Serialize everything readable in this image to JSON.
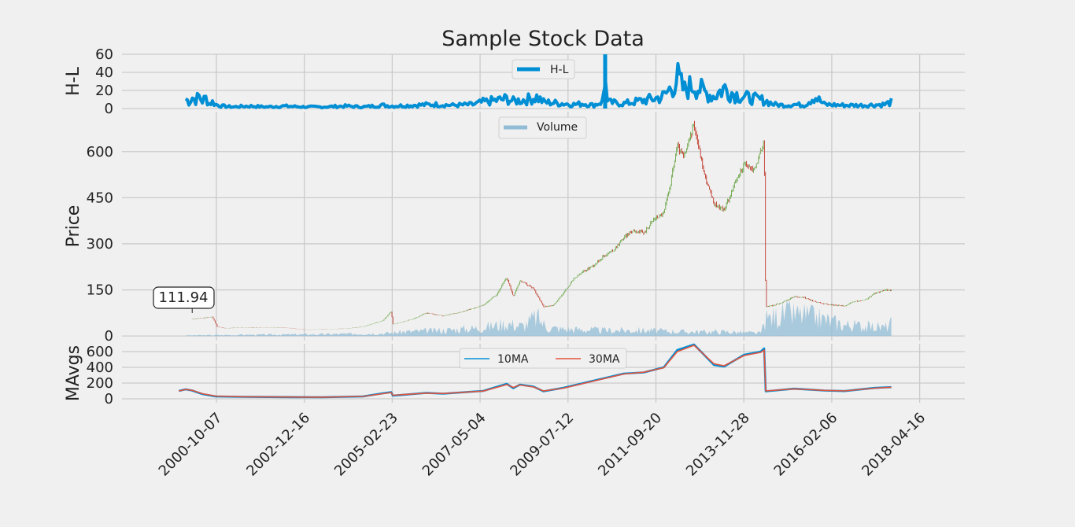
{
  "chart_data": [
    {
      "type": "line",
      "title": "Sample Stock Data",
      "ylabel": "H-L",
      "yticks": [
        0,
        20,
        40,
        60
      ],
      "ylim": [
        0,
        60
      ],
      "legend": {
        "placement": "top-center",
        "entries": [
          "H-L"
        ]
      },
      "grid": true,
      "series": [
        {
          "name": "H-L",
          "color": "#008fd5",
          "points": [
            [
              "2000-01-01",
              12
            ],
            [
              "2000-02-01",
              8
            ],
            [
              "2000-03-01",
              14
            ],
            [
              "2000-04-01",
              10
            ],
            [
              "2000-05-01",
              15
            ],
            [
              "2000-06-01",
              9
            ],
            [
              "2000-07-01",
              13
            ],
            [
              "2000-08-01",
              6
            ],
            [
              "2000-09-01",
              8
            ],
            [
              "2000-10-01",
              5
            ],
            [
              "2000-12-01",
              3
            ],
            [
              "2001-03-01",
              2
            ],
            [
              "2001-08-01",
              3
            ],
            [
              "2002-01-01",
              2
            ],
            [
              "2002-06-01",
              3
            ],
            [
              "2003-01-01",
              2
            ],
            [
              "2003-06-01",
              2
            ],
            [
              "2004-01-01",
              3
            ],
            [
              "2004-06-01",
              2
            ],
            [
              "2004-12-01",
              4
            ],
            [
              "2005-03-01",
              3
            ],
            [
              "2005-09-01",
              4
            ],
            [
              "2006-03-01",
              5
            ],
            [
              "2006-09-01",
              4
            ],
            [
              "2007-03-01",
              5
            ],
            [
              "2007-06-01",
              8
            ],
            [
              "2007-10-01",
              10
            ],
            [
              "2008-01-01",
              12
            ],
            [
              "2008-03-01",
              9
            ],
            [
              "2008-07-01",
              11
            ],
            [
              "2008-10-01",
              14
            ],
            [
              "2008-12-01",
              8
            ],
            [
              "2009-03-01",
              7
            ],
            [
              "2009-06-01",
              6
            ],
            [
              "2009-09-01",
              5
            ],
            [
              "2009-12-01",
              6
            ],
            [
              "2010-03-01",
              4
            ],
            [
              "2010-06-01",
              9
            ],
            [
              "2010-06-15",
              64
            ],
            [
              "2010-07-01",
              8
            ],
            [
              "2010-09-01",
              7
            ],
            [
              "2010-12-01",
              6
            ],
            [
              "2011-03-01",
              8
            ],
            [
              "2011-06-01",
              10
            ],
            [
              "2011-09-01",
              12
            ],
            [
              "2011-12-01",
              15
            ],
            [
              "2012-02-01",
              25
            ],
            [
              "2012-04-01",
              38
            ],
            [
              "2012-06-01",
              22
            ],
            [
              "2012-09-01",
              30
            ],
            [
              "2012-12-01",
              20
            ],
            [
              "2013-03-01",
              15
            ],
            [
              "2013-06-01",
              25
            ],
            [
              "2013-09-01",
              18
            ],
            [
              "2013-12-01",
              14
            ],
            [
              "2014-03-01",
              12
            ],
            [
              "2014-06-01",
              10
            ],
            [
              "2014-09-01",
              5
            ],
            [
              "2014-12-01",
              4
            ],
            [
              "2015-03-01",
              5
            ],
            [
              "2015-06-01",
              4
            ],
            [
              "2015-09-01",
              15
            ],
            [
              "2015-12-01",
              5
            ],
            [
              "2016-06-01",
              4
            ],
            [
              "2016-12-01",
              4
            ],
            [
              "2017-06-01",
              5
            ],
            [
              "2017-08-01",
              8
            ]
          ]
        }
      ]
    },
    {
      "type": "candlestick",
      "ylabel": "Price",
      "yticks": [
        0,
        150,
        300,
        450,
        600
      ],
      "ylim": [
        -15,
        730
      ],
      "legend": {
        "placement": "top-center",
        "entries": [
          "Volume"
        ]
      },
      "annotation": {
        "text": "111.94",
        "x": "2000-03-01"
      },
      "colors": {
        "up": "#6ba547",
        "down": "#c0392b",
        "volume": "#92bcd6"
      },
      "grid": true,
      "series": [
        {
          "name": "price",
          "points": [
            [
              "2000-03-01",
              55
            ],
            [
              "2000-06-01",
              58
            ],
            [
              "2000-09-01",
              62
            ],
            [
              "2000-10-15",
              30
            ],
            [
              "2001-01-01",
              25
            ],
            [
              "2001-06-01",
              28
            ],
            [
              "2002-01-01",
              27
            ],
            [
              "2002-06-01",
              28
            ],
            [
              "2003-01-01",
              20
            ],
            [
              "2003-06-01",
              22
            ],
            [
              "2004-01-01",
              24
            ],
            [
              "2004-06-01",
              30
            ],
            [
              "2004-12-01",
              50
            ],
            [
              "2005-02-15",
              80
            ],
            [
              "2005-03-01",
              38
            ],
            [
              "2005-09-01",
              55
            ],
            [
              "2006-01-01",
              75
            ],
            [
              "2006-06-01",
              65
            ],
            [
              "2006-12-01",
              80
            ],
            [
              "2007-06-01",
              100
            ],
            [
              "2007-10-01",
              135
            ],
            [
              "2008-01-01",
              190
            ],
            [
              "2008-03-01",
              130
            ],
            [
              "2008-05-01",
              180
            ],
            [
              "2008-09-01",
              155
            ],
            [
              "2008-12-01",
              95
            ],
            [
              "2009-03-01",
              100
            ],
            [
              "2009-06-01",
              140
            ],
            [
              "2009-09-01",
              185
            ],
            [
              "2009-12-01",
              210
            ],
            [
              "2010-03-01",
              230
            ],
            [
              "2010-06-01",
              260
            ],
            [
              "2010-09-01",
              280
            ],
            [
              "2010-12-01",
              320
            ],
            [
              "2011-03-01",
              345
            ],
            [
              "2011-06-01",
              335
            ],
            [
              "2011-09-01",
              380
            ],
            [
              "2011-12-01",
              400
            ],
            [
              "2012-02-01",
              500
            ],
            [
              "2012-04-01",
              620
            ],
            [
              "2012-06-01",
              580
            ],
            [
              "2012-09-01",
              690
            ],
            [
              "2012-12-01",
              530
            ],
            [
              "2013-03-01",
              430
            ],
            [
              "2013-06-01",
              410
            ],
            [
              "2013-09-01",
              490
            ],
            [
              "2013-12-01",
              560
            ],
            [
              "2014-03-01",
              540
            ],
            [
              "2014-05-01",
              600
            ],
            [
              "2014-06-01",
              640
            ],
            [
              "2014-06-15",
              95
            ],
            [
              "2014-09-01",
              100
            ],
            [
              "2014-12-01",
              112
            ],
            [
              "2015-03-01",
              128
            ],
            [
              "2015-06-01",
              125
            ],
            [
              "2015-09-01",
              112
            ],
            [
              "2015-12-01",
              105
            ],
            [
              "2016-03-01",
              100
            ],
            [
              "2016-06-01",
              98
            ],
            [
              "2016-09-01",
              112
            ],
            [
              "2016-12-01",
              116
            ],
            [
              "2017-03-01",
              138
            ],
            [
              "2017-06-01",
              150
            ],
            [
              "2017-08-01",
              148
            ]
          ]
        },
        {
          "name": "Volume",
          "points": [
            [
              "2000-01-01",
              2
            ],
            [
              "2000-10-01",
              3
            ],
            [
              "2001-06-01",
              4
            ],
            [
              "2002-06-01",
              5
            ],
            [
              "2003-06-01",
              6
            ],
            [
              "2004-06-01",
              8
            ],
            [
              "2005-02-01",
              10
            ],
            [
              "2005-06-01",
              15
            ],
            [
              "2006-06-01",
              20
            ],
            [
              "2007-06-01",
              30
            ],
            [
              "2008-01-01",
              45
            ],
            [
              "2008-06-01",
              35
            ],
            [
              "2008-10-01",
              70
            ],
            [
              "2009-01-01",
              30
            ],
            [
              "2009-06-01",
              25
            ],
            [
              "2010-06-01",
              20
            ],
            [
              "2011-06-01",
              20
            ],
            [
              "2012-06-01",
              15
            ],
            [
              "2013-06-01",
              15
            ],
            [
              "2014-05-01",
              10
            ],
            [
              "2014-06-15",
              60
            ],
            [
              "2014-12-01",
              80
            ],
            [
              "2015-06-01",
              75
            ],
            [
              "2015-12-01",
              60
            ],
            [
              "2016-06-01",
              40
            ],
            [
              "2017-06-01",
              30
            ],
            [
              "2017-08-01",
              45
            ]
          ]
        }
      ]
    },
    {
      "type": "line",
      "ylabel": "MAvgs",
      "yticks": [
        0,
        200,
        400,
        600
      ],
      "ylim": [
        -50,
        700
      ],
      "legend": {
        "placement": "top-center",
        "entries": [
          "10MA",
          "30MA"
        ]
      },
      "xticks": [
        "2000-10-07",
        "2002-12-16",
        "2005-02-23",
        "2007-05-04",
        "2009-07-12",
        "2011-09-20",
        "2013-11-28",
        "2016-02-06",
        "2018-04-16"
      ],
      "xlim": [
        "1998-06-01",
        "2019-06-01"
      ],
      "grid": true,
      "series": [
        {
          "name": "10MA",
          "color": "#008fd5",
          "points": [
            [
              "1999-11-01",
              100
            ],
            [
              "2000-01-01",
              120
            ],
            [
              "2000-03-01",
              105
            ],
            [
              "2000-06-01",
              60
            ],
            [
              "2000-10-01",
              30
            ],
            [
              "2001-06-01",
              25
            ],
            [
              "2002-06-01",
              22
            ],
            [
              "2003-06-01",
              20
            ],
            [
              "2004-06-01",
              30
            ],
            [
              "2004-12-01",
              70
            ],
            [
              "2005-02-15",
              85
            ],
            [
              "2005-03-01",
              40
            ],
            [
              "2006-01-01",
              75
            ],
            [
              "2006-06-01",
              65
            ],
            [
              "2007-06-01",
              100
            ],
            [
              "2008-01-01",
              190
            ],
            [
              "2008-03-01",
              135
            ],
            [
              "2008-05-01",
              180
            ],
            [
              "2008-09-01",
              155
            ],
            [
              "2008-12-01",
              95
            ],
            [
              "2009-06-01",
              140
            ],
            [
              "2010-03-01",
              230
            ],
            [
              "2010-12-01",
              320
            ],
            [
              "2011-06-01",
              335
            ],
            [
              "2011-12-01",
              400
            ],
            [
              "2012-04-01",
              620
            ],
            [
              "2012-09-01",
              690
            ],
            [
              "2013-03-01",
              430
            ],
            [
              "2013-06-01",
              410
            ],
            [
              "2013-12-01",
              560
            ],
            [
              "2014-05-01",
              600
            ],
            [
              "2014-06-01",
              640
            ],
            [
              "2014-06-15",
              95
            ],
            [
              "2015-03-01",
              128
            ],
            [
              "2015-12-01",
              105
            ],
            [
              "2016-06-01",
              98
            ],
            [
              "2017-03-01",
              138
            ],
            [
              "2017-08-01",
              148
            ]
          ]
        },
        {
          "name": "30MA",
          "color": "#e5533c",
          "points": [
            [
              "1999-11-01",
              100
            ],
            [
              "2000-01-01",
              118
            ],
            [
              "2000-03-01",
              108
            ],
            [
              "2000-06-01",
              65
            ],
            [
              "2000-10-01",
              35
            ],
            [
              "2001-06-01",
              26
            ],
            [
              "2002-06-01",
              23
            ],
            [
              "2003-06-01",
              21
            ],
            [
              "2004-06-01",
              30
            ],
            [
              "2004-12-01",
              65
            ],
            [
              "2005-02-15",
              80
            ],
            [
              "2005-03-01",
              45
            ],
            [
              "2006-01-01",
              72
            ],
            [
              "2006-06-01",
              67
            ],
            [
              "2007-06-01",
              98
            ],
            [
              "2008-01-01",
              180
            ],
            [
              "2008-03-01",
              145
            ],
            [
              "2008-05-01",
              175
            ],
            [
              "2008-09-01",
              150
            ],
            [
              "2008-12-01",
              100
            ],
            [
              "2009-06-01",
              135
            ],
            [
              "2010-03-01",
              225
            ],
            [
              "2010-12-01",
              315
            ],
            [
              "2011-06-01",
              338
            ],
            [
              "2011-12-01",
              395
            ],
            [
              "2012-04-01",
              600
            ],
            [
              "2012-09-01",
              680
            ],
            [
              "2013-03-01",
              445
            ],
            [
              "2013-06-01",
              420
            ],
            [
              "2013-12-01",
              550
            ],
            [
              "2014-05-01",
              590
            ],
            [
              "2014-06-01",
              620
            ],
            [
              "2014-06-15",
              100
            ],
            [
              "2015-03-01",
              126
            ],
            [
              "2015-12-01",
              107
            ],
            [
              "2016-06-01",
              100
            ],
            [
              "2017-03-01",
              135
            ],
            [
              "2017-08-01",
              147
            ]
          ]
        }
      ]
    }
  ]
}
